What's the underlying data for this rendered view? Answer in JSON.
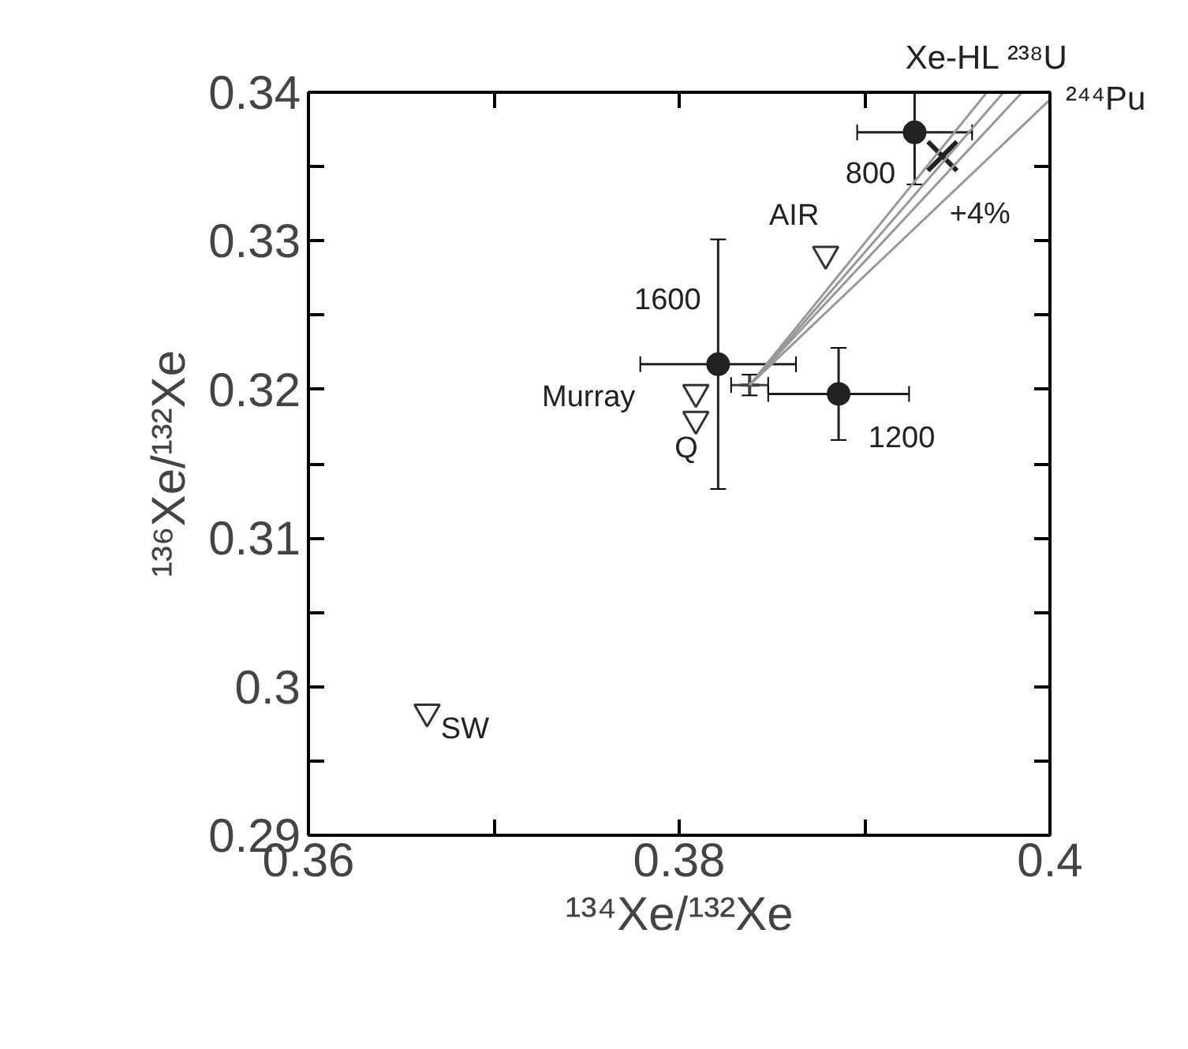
{
  "chart_data": {
    "type": "scatter",
    "xlabel": "¹³⁴Xe/¹³²Xe",
    "ylabel": "¹³⁶Xe/¹³²Xe",
    "xlim": [
      0.36,
      0.4
    ],
    "ylim": [
      0.29,
      0.34
    ],
    "xticks": [
      0.36,
      {
        "value": 0.37,
        "label": null
      },
      0.38,
      {
        "value": 0.39,
        "label": null
      },
      0.4
    ],
    "yticks": [
      0.29,
      {
        "value": 0.295,
        "label": null
      },
      0.3,
      {
        "value": 0.305,
        "label": null
      },
      0.31,
      {
        "value": 0.315,
        "label": null
      },
      0.32,
      {
        "value": 0.325,
        "label": null
      },
      0.33,
      {
        "value": 0.335,
        "label": null
      },
      0.34
    ],
    "grid": false,
    "series": [
      {
        "marker": "circle",
        "color": "#222222",
        "x": [
          0.3927,
          0.3821,
          0.3886
        ],
        "values": [
          0.3373,
          0.3217,
          0.3197
        ],
        "errors": [
          [
            0.3338,
            0.34
          ],
          0.0084,
          0.0031
        ],
        "xerrors": [
          0.0031,
          0.0042,
          0.0038
        ]
      },
      {
        "marker": "cross",
        "color": "#444444",
        "x": [
          0.3838
        ],
        "values": [
          0.3203
        ],
        "errors": [
          0.0007
        ],
        "xerrors": [
          0.001
        ]
      },
      {
        "marker": "cross",
        "color": "#222222",
        "x": [
          0.3942
        ],
        "values": [
          0.3357
        ]
      },
      {
        "marker": "triangle",
        "color": "#333333",
        "x": [
          0.3879,
          0.3809,
          0.3809,
          0.3664
        ],
        "values": [
          0.3291,
          0.3198,
          0.318,
          0.2983
        ]
      },
      {
        "type": "line",
        "color": "#999999",
        "x": [
          0.3838,
          0.3966
        ],
        "values": [
          0.3203,
          0.34
        ]
      },
      {
        "type": "line",
        "color": "#999999",
        "x": [
          0.3838,
          0.3975
        ],
        "values": [
          0.3203,
          0.34
        ]
      },
      {
        "type": "line",
        "color": "#999999",
        "x": [
          0.3838,
          0.3985
        ],
        "values": [
          0.3203,
          0.34
        ]
      },
      {
        "type": "line",
        "color": "#999999",
        "x": [
          0.3838,
          0.4
        ],
        "values": [
          0.3203,
          0.3395
        ]
      }
    ],
    "annotations": [
      {
        "text": "800",
        "x": 0.3927,
        "y": 0.3373
      },
      {
        "text": "1600",
        "x": 0.3821,
        "y": 0.3217
      },
      {
        "text": "1200",
        "x": 0.3886,
        "y": 0.3197
      },
      {
        "text": "AIR",
        "x": 0.3879,
        "y": 0.3291
      },
      {
        "text": "Murray",
        "x": 0.3809,
        "y": 0.3198
      },
      {
        "text": "Q",
        "x": 0.3809,
        "y": 0.318
      },
      {
        "text": "SW",
        "x": 0.3664,
        "y": 0.2983
      },
      {
        "text": "+4%",
        "x": 0.3935,
        "y": 0.33175
      },
      {
        "text": "Xe-HL ²³⁸U",
        "x": 0.3966,
        "y": 0.34
      },
      {
        "text": "²⁴⁴Pu",
        "x": 0.4,
        "y": 0.3395
      }
    ]
  }
}
